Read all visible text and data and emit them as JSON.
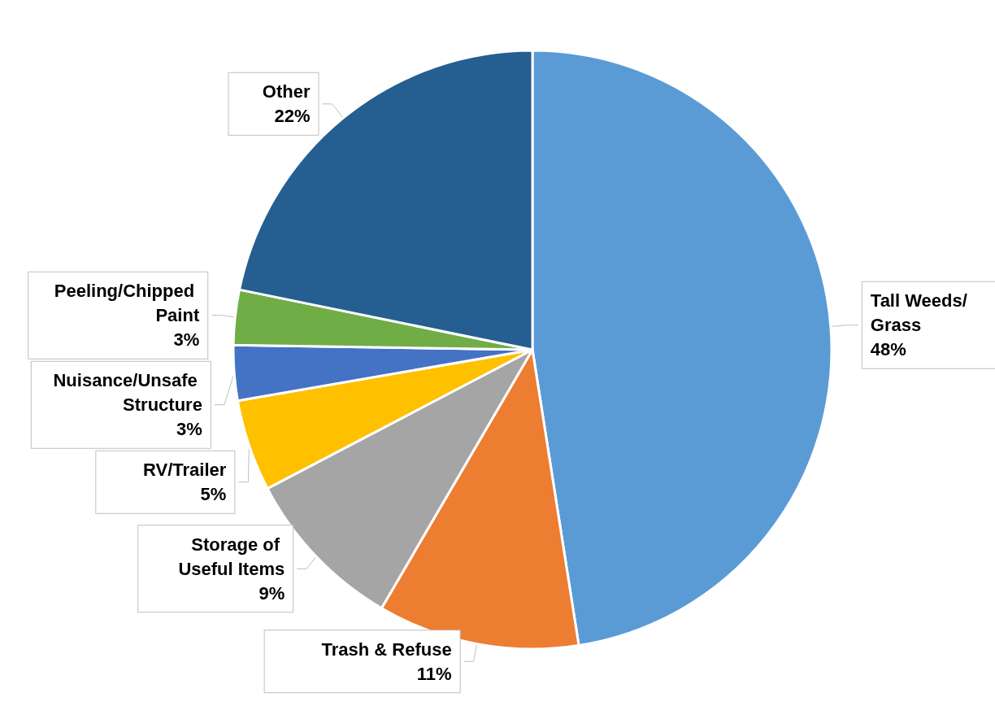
{
  "chart_data": {
    "type": "pie",
    "categories": [
      "Tall Weeds/Grass",
      "Trash & Refuse",
      "Storage of Useful Items",
      "RV/Trailer",
      "Nuisance/Unsafe Structure",
      "Peeling/Chipped Paint",
      "Other"
    ],
    "values": [
      48,
      11,
      9,
      5,
      3,
      3,
      22
    ],
    "value_labels": [
      "48%",
      "11%",
      "9%",
      "5%",
      "3%",
      "3%",
      "22%"
    ],
    "colors": [
      "#5b9bd5",
      "#ed7d31",
      "#a5a5a5",
      "#ffc000",
      "#4472c4",
      "#70ad47",
      "#255e91"
    ]
  }
}
